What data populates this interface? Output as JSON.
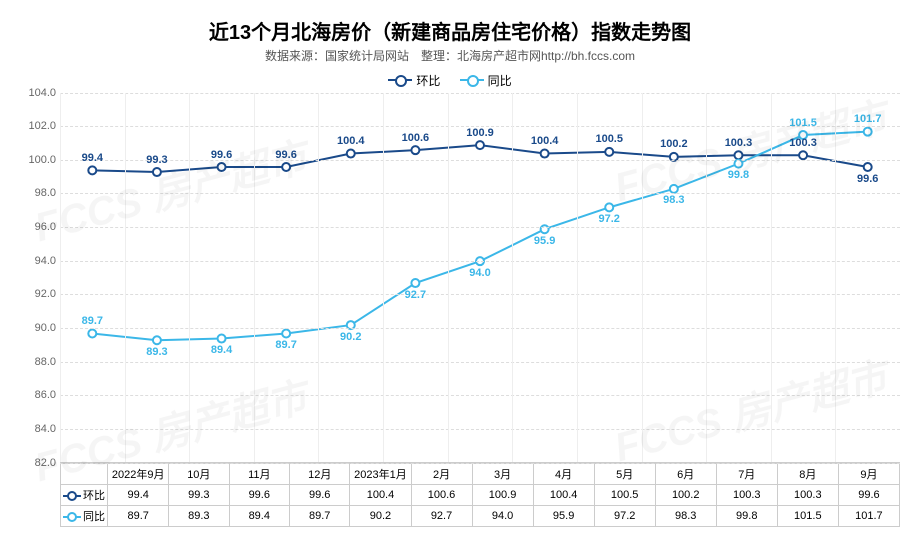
{
  "chart": {
    "type": "line",
    "title": "近13个月北海房价（新建商品房住宅价格）指数走势图",
    "subtitle": "数据来源：国家统计局网站　整理：北海房产超市网http://bh.fccs.com",
    "title_fontsize": 20,
    "subtitle_fontsize": 12,
    "background_color": "#ffffff",
    "grid_color": "#dddddd",
    "ylim": [
      82,
      104
    ],
    "ytick_step": 2,
    "yticks": [
      82,
      84,
      86,
      88,
      90,
      92,
      94,
      96,
      98,
      100,
      102,
      104
    ],
    "yticklabels": [
      "82.0",
      "84.0",
      "86.0",
      "88.0",
      "90.0",
      "92.0",
      "94.0",
      "96.0",
      "98.0",
      "100.0",
      "102.0",
      "104.0"
    ],
    "categories": [
      "2022年9月",
      "10月",
      "11月",
      "12月",
      "2023年1月",
      "2月",
      "3月",
      "4月",
      "5月",
      "6月",
      "7月",
      "8月",
      "9月"
    ],
    "line_width": 2,
    "marker_size": 8,
    "label_fontsize": 11,
    "series": [
      {
        "name": "环比",
        "color": "#1a4a8a",
        "label_color": "#1a4a8a",
        "values": [
          99.4,
          99.3,
          99.6,
          99.6,
          100.4,
          100.6,
          100.9,
          100.4,
          100.5,
          100.2,
          100.3,
          100.3,
          99.6
        ],
        "label_pos": [
          "above",
          "above",
          "above",
          "above",
          "above",
          "above",
          "above",
          "above",
          "above",
          "above",
          "above",
          "above",
          "below"
        ]
      },
      {
        "name": "同比",
        "color": "#3bb7e8",
        "label_color": "#3bb7e8",
        "values": [
          89.7,
          89.3,
          89.4,
          89.7,
          90.2,
          92.7,
          94.0,
          95.9,
          97.2,
          98.3,
          99.8,
          101.5,
          101.7
        ],
        "label_pos": [
          "above",
          "below",
          "below",
          "below",
          "below",
          "below",
          "below",
          "below",
          "below",
          "below",
          "below",
          "above",
          "above"
        ]
      }
    ],
    "watermark_text": "FCCS 房产超市"
  }
}
